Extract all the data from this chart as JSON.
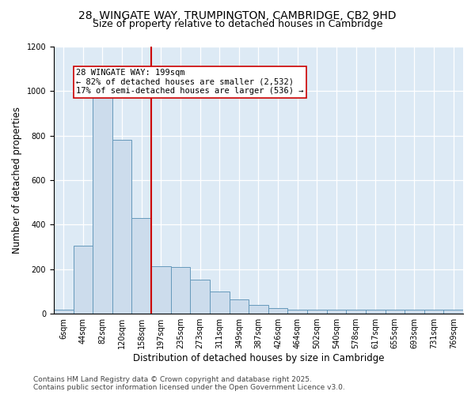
{
  "title_line1": "28, WINGATE WAY, TRUMPINGTON, CAMBRIDGE, CB2 9HD",
  "title_line2": "Size of property relative to detached houses in Cambridge",
  "xlabel": "Distribution of detached houses by size in Cambridge",
  "ylabel": "Number of detached properties",
  "categories": [
    "6sqm",
    "44sqm",
    "82sqm",
    "120sqm",
    "158sqm",
    "197sqm",
    "235sqm",
    "273sqm",
    "311sqm",
    "349sqm",
    "387sqm",
    "426sqm",
    "464sqm",
    "502sqm",
    "540sqm",
    "578sqm",
    "617sqm",
    "655sqm",
    "693sqm",
    "731sqm",
    "769sqm"
  ],
  "values": [
    18,
    305,
    1050,
    780,
    430,
    215,
    210,
    155,
    100,
    65,
    40,
    25,
    20,
    20,
    18,
    18,
    18,
    18,
    18,
    18,
    18
  ],
  "bar_color": "#ccdcec",
  "bar_edge_color": "#6699bb",
  "vline_index": 5,
  "annotation_text_line1": "28 WINGATE WAY: 199sqm",
  "annotation_text_line2": "← 82% of detached houses are smaller (2,532)",
  "annotation_text_line3": "17% of semi-detached houses are larger (536) →",
  "vline_color": "#cc0000",
  "annotation_box_edgecolor": "#cc0000",
  "plot_bg_color": "#ddeaf5",
  "grid_color": "#c0d0e0",
  "ylim": [
    0,
    1200
  ],
  "yticks": [
    0,
    200,
    400,
    600,
    800,
    1000,
    1200
  ],
  "footer_line1": "Contains HM Land Registry data © Crown copyright and database right 2025.",
  "footer_line2": "Contains public sector information licensed under the Open Government Licence v3.0.",
  "title_fontsize": 10,
  "subtitle_fontsize": 9,
  "axis_label_fontsize": 8.5,
  "tick_fontsize": 7,
  "annotation_fontsize": 7.5,
  "footer_fontsize": 6.5
}
